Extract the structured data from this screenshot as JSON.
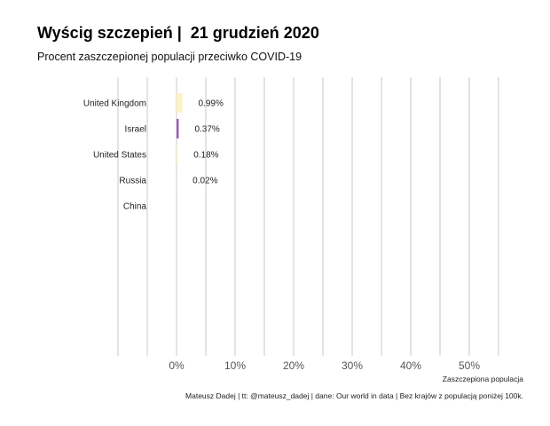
{
  "title": "Wyścig szczepień |  21 grudzień 2020",
  "subtitle": "Procent zaszczepionej populacji przeciwko COVID-19",
  "caption": "Mateusz Dadej | tt: @mateusz_dadej | dane: Our world in data | Bez krajów z populacją poniżej 100k.",
  "chart_data": {
    "type": "bar",
    "orientation": "horizontal",
    "categories": [
      "United Kingdom",
      "Israel",
      "United States",
      "Russia",
      "China"
    ],
    "values": [
      0.99,
      0.37,
      0.18,
      0.02,
      0.0
    ],
    "value_labels": [
      "0.99%",
      "0.37%",
      "0.18%",
      "0.02%",
      ""
    ],
    "colors": [
      "#fdf3c0",
      "#9b59b6",
      "#fdf3c0",
      "#fdf3c0",
      "#fdf3c0"
    ],
    "xlabel": "Zaszczepiona populacja",
    "xlim": [
      -10,
      55
    ],
    "x_ticks": [
      0,
      10,
      20,
      30,
      40,
      50
    ],
    "x_tick_labels": [
      "0%",
      "10%",
      "20%",
      "30%",
      "40%",
      "50%"
    ],
    "grid_lines": [
      -10,
      -5,
      0,
      5,
      10,
      15,
      20,
      25,
      30,
      35,
      40,
      45,
      50,
      55
    ],
    "grid": true,
    "legend": "none"
  }
}
